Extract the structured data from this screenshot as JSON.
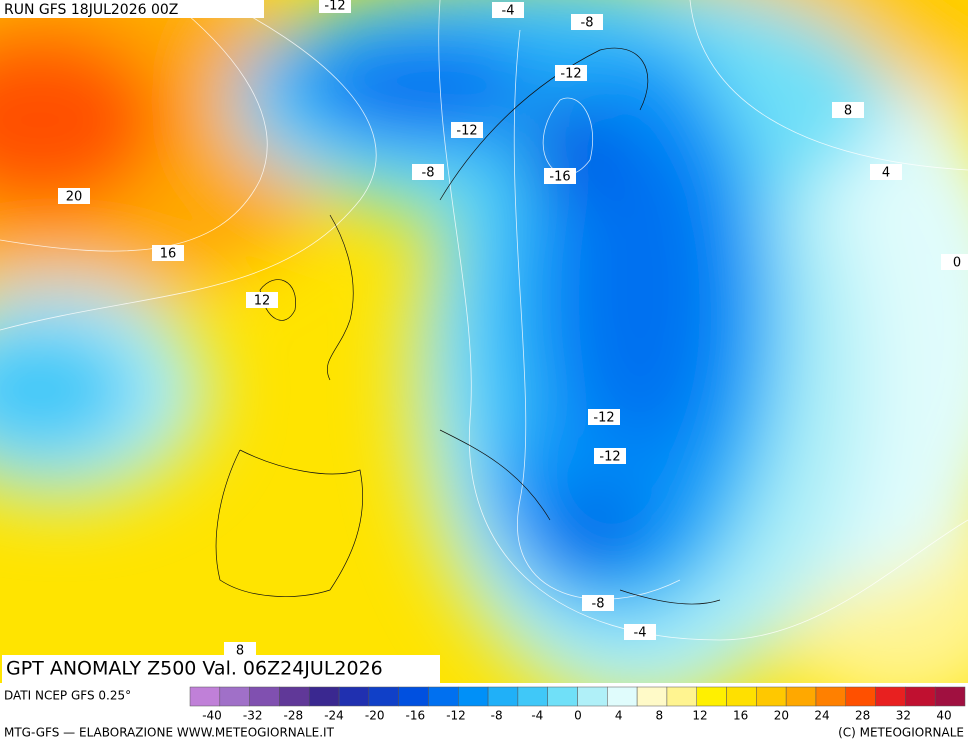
{
  "header": {
    "run": "RUN GFS 18JUL2026 00Z",
    "title": "GPT ANOMALY Z500 Val. 06Z24JUL2026"
  },
  "contour_labels": [
    "-12",
    "-4",
    "-8",
    "-12",
    "-12",
    "-8",
    "-16",
    "8",
    "4",
    "0",
    "20",
    "16",
    "12",
    "-12",
    "-12",
    "-8",
    "-4",
    "8"
  ],
  "colorbar": {
    "source": "DATI NCEP GFS 0.25°",
    "colors": [
      "#c080d8",
      "#a070c8",
      "#8050b0",
      "#603898",
      "#3a2890",
      "#2030b0",
      "#1040c8",
      "#0050e0",
      "#0070f0",
      "#0090f8",
      "#20b0f8",
      "#40c8f8",
      "#70e0f8",
      "#b0f0f8",
      "#e0fcfc",
      "#fffac8",
      "#fff490",
      "#fff000",
      "#ffe000",
      "#ffc800",
      "#ffa800",
      "#ff8000",
      "#ff5000",
      "#e82020",
      "#c01030",
      "#a01040"
    ],
    "labels": [
      "-40",
      "-32",
      "-28",
      "-24",
      "-20",
      "-16",
      "-12",
      "-8",
      "-4",
      "0",
      "4",
      "8",
      "12",
      "16",
      "20",
      "24",
      "28",
      "32",
      "40"
    ]
  },
  "footer": {
    "left": "MTG-GFS — ELABORAZIONE WWW.METEOGIORNALE.IT",
    "right": "(C) METEOGIORNALE"
  }
}
